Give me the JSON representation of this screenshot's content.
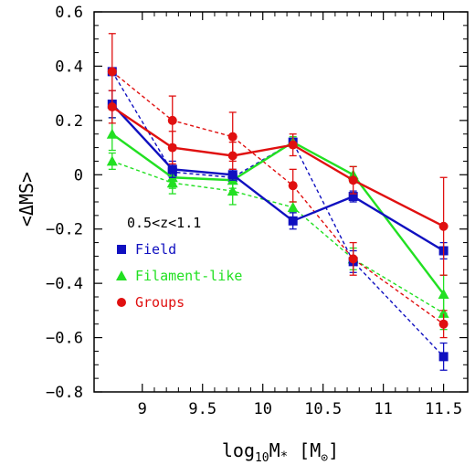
{
  "chart_data": {
    "type": "line",
    "title": "",
    "xlabel": {
      "main": "log",
      "sub": "10",
      "mid": "M",
      "star": "*",
      "bracket_open": " [M",
      "sun": "⊙",
      "bracket_close": "]"
    },
    "ylabel": "<ΔMS>",
    "xlim": [
      8.6,
      11.7
    ],
    "ylim": [
      -0.8,
      0.6
    ],
    "xticks": [
      9,
      9.5,
      10,
      10.5,
      11,
      11.5
    ],
    "xtick_labels": [
      "9",
      "9.5",
      "10",
      "10.5",
      "11",
      "11.5"
    ],
    "yticks": [
      -0.8,
      -0.6,
      -0.4,
      -0.2,
      0,
      0.2,
      0.4,
      0.6
    ],
    "ytick_labels": [
      "−0.8",
      "−0.6",
      "−0.4",
      "−0.2",
      "0",
      "0.2",
      "0.4",
      "0.6"
    ],
    "grid": false,
    "annotation": "0.5<z<1.1",
    "legend_position": "lower-left",
    "series": [
      {
        "name": "Field",
        "color": "#1010c0",
        "marker": "square",
        "linestyle": "solid",
        "x": [
          8.75,
          9.25,
          9.75,
          10.25,
          10.75,
          11.5
        ],
        "y": [
          0.26,
          0.02,
          0.0,
          -0.17,
          -0.08,
          -0.28
        ],
        "err": [
          0.05,
          0.03,
          0.02,
          0.03,
          0.02,
          0.03
        ],
        "in_legend": true
      },
      {
        "name": "Filament-like",
        "color": "#22e022",
        "marker": "triangle",
        "linestyle": "solid",
        "x": [
          8.75,
          9.25,
          9.75,
          10.25,
          10.75,
          11.5
        ],
        "y": [
          0.15,
          -0.01,
          -0.02,
          0.12,
          0.0,
          -0.44
        ],
        "err": [
          0.06,
          0.04,
          0.03,
          0.02,
          0.03,
          0.07
        ],
        "in_legend": true
      },
      {
        "name": "Groups",
        "color": "#e01010",
        "marker": "circle",
        "linestyle": "solid",
        "x": [
          8.75,
          9.25,
          9.75,
          10.25,
          10.75,
          11.5
        ],
        "y": [
          0.25,
          0.1,
          0.07,
          0.11,
          -0.02,
          -0.19
        ],
        "err": [
          0.06,
          0.06,
          0.05,
          0.04,
          0.05,
          0.18
        ],
        "in_legend": true
      },
      {
        "name": "",
        "color": "#1010c0",
        "marker": "square",
        "linestyle": "dashed",
        "x": [
          8.75,
          9.25,
          9.75,
          10.25,
          10.75,
          11.5
        ],
        "y": [
          0.38,
          0.01,
          -0.01,
          0.12,
          -0.32,
          -0.67
        ],
        "err": [
          0.0,
          0.0,
          0.0,
          0.0,
          0.04,
          0.05
        ],
        "in_legend": false
      },
      {
        "name": "",
        "color": "#22e022",
        "marker": "triangle",
        "linestyle": "dashed",
        "x": [
          8.75,
          9.25,
          9.75,
          10.25,
          10.75,
          11.5
        ],
        "y": [
          0.05,
          -0.03,
          -0.06,
          -0.12,
          -0.31,
          -0.51
        ],
        "err": [
          0.03,
          0.04,
          0.05,
          0.02,
          0.04,
          0.06
        ],
        "in_legend": false
      },
      {
        "name": "",
        "color": "#e01010",
        "marker": "circle",
        "linestyle": "dashed",
        "x": [
          8.75,
          9.25,
          9.75,
          10.25,
          10.75,
          11.5
        ],
        "y": [
          0.38,
          0.2,
          0.14,
          -0.04,
          -0.31,
          -0.55
        ],
        "err": [
          0.14,
          0.09,
          0.09,
          0.06,
          0.06,
          0.05
        ],
        "in_legend": false
      }
    ]
  }
}
